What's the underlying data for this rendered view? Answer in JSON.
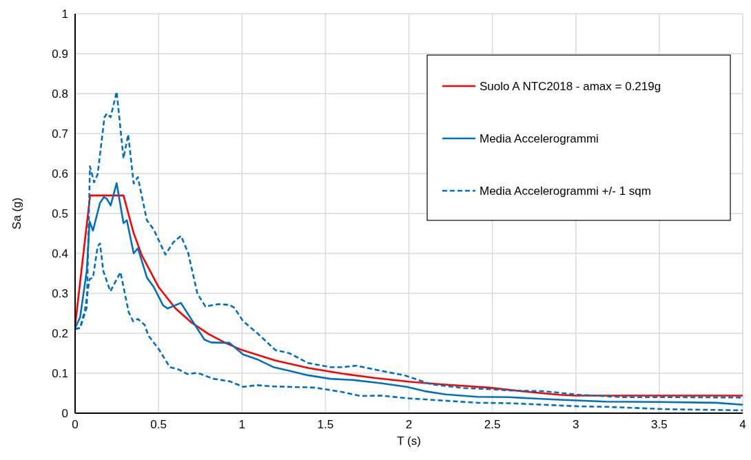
{
  "chart_data": {
    "type": "line",
    "xlabel": "T (s)",
    "ylabel": "Sa (g)",
    "xlim": [
      0,
      4
    ],
    "ylim": [
      0,
      1
    ],
    "xticks": [
      0,
      0.5,
      1,
      1.5,
      2,
      2.5,
      3,
      3.5,
      4
    ],
    "yticks": [
      0,
      0.1,
      0.2,
      0.3,
      0.4,
      0.5,
      0.6,
      0.7,
      0.8,
      0.9,
      1
    ],
    "grid": true,
    "legend": "top right",
    "marker": "none",
    "series": [
      {
        "name": "Suolo A NTC2018 - amax = 0.219g",
        "color": "#ff0000",
        "line_style": "solid",
        "x": [
          0,
          0.09,
          0.29,
          0.35,
          0.4,
          0.5,
          0.6,
          0.7,
          0.8,
          0.9,
          1,
          1.2,
          1.4,
          1.6,
          1.8,
          2,
          2.2,
          2.48,
          2.7,
          2.9,
          3,
          4
        ],
        "values": [
          0.219,
          0.545,
          0.545,
          0.452,
          0.395,
          0.316,
          0.263,
          0.226,
          0.198,
          0.176,
          0.158,
          0.132,
          0.113,
          0.099,
          0.088,
          0.079,
          0.072,
          0.064,
          0.054,
          0.046,
          0.044,
          0.044
        ]
      },
      {
        "name": "Media Accelerogrammi",
        "color": "#0070c0",
        "line_style": "solid",
        "x": [
          0,
          0.03,
          0.07,
          0.087,
          0.107,
          0.149,
          0.172,
          0.19,
          0.213,
          0.249,
          0.29,
          0.31,
          0.351,
          0.376,
          0.431,
          0.471,
          0.527,
          0.554,
          0.634,
          0.678,
          0.775,
          0.816,
          0.925,
          1.007,
          1.09,
          1.19,
          1.284,
          1.394,
          1.53,
          1.668,
          1.833,
          1.986,
          2.096,
          2.22,
          2.41,
          2.6,
          2.88,
          3.18,
          3.5,
          3.84,
          4
        ],
        "values": [
          0.213,
          0.24,
          0.357,
          0.48,
          0.457,
          0.526,
          0.541,
          0.537,
          0.52,
          0.576,
          0.476,
          0.483,
          0.4,
          0.413,
          0.339,
          0.316,
          0.27,
          0.262,
          0.276,
          0.247,
          0.184,
          0.177,
          0.176,
          0.147,
          0.135,
          0.115,
          0.106,
          0.095,
          0.086,
          0.083,
          0.075,
          0.066,
          0.055,
          0.047,
          0.041,
          0.04,
          0.034,
          0.029,
          0.028,
          0.026,
          0.021
        ]
      },
      {
        "name": "Media Accelerogrammi +/- 1 sqm",
        "color": "#0070c0",
        "line_style": "dashed",
        "x": [
          0,
          0.03,
          0.07,
          0.089,
          0.114,
          0.135,
          0.176,
          0.19,
          0.213,
          0.249,
          0.29,
          0.318,
          0.351,
          0.376,
          0.43,
          0.471,
          0.541,
          0.589,
          0.634,
          0.677,
          0.733,
          0.781,
          0.857,
          0.925,
          0.954,
          1.007,
          1.09,
          1.2,
          1.284,
          1.394,
          1.53,
          1.6,
          1.683,
          1.833,
          1.972,
          2.137,
          2.33,
          2.49,
          2.6,
          2.81,
          3.02,
          3.29,
          3.64,
          4
        ],
        "values": [
          0.211,
          0.213,
          0.265,
          0.618,
          0.578,
          0.598,
          0.741,
          0.75,
          0.741,
          0.805,
          0.638,
          0.698,
          0.575,
          0.591,
          0.483,
          0.46,
          0.397,
          0.428,
          0.444,
          0.402,
          0.299,
          0.267,
          0.273,
          0.271,
          0.264,
          0.23,
          0.201,
          0.158,
          0.15,
          0.126,
          0.115,
          0.115,
          0.119,
          0.106,
          0.095,
          0.072,
          0.063,
          0.06,
          0.057,
          0.055,
          0.046,
          0.04,
          0.04,
          0.039
        ]
      },
      {
        "color": "#0070c0",
        "line_style": "dashed",
        "x": [
          0,
          0.03,
          0.059,
          0.087,
          0.107,
          0.135,
          0.149,
          0.169,
          0.211,
          0.272,
          0.321,
          0.348,
          0.376,
          0.417,
          0.438,
          0.5,
          0.568,
          0.623,
          0.672,
          0.733,
          0.83,
          0.925,
          0.954,
          1.007,
          1.09,
          1.19,
          1.284,
          1.435,
          1.6,
          1.71,
          1.833,
          2.0,
          2.19,
          2.41,
          2.6,
          3.02,
          3.18,
          3.54,
          4
        ],
        "values": [
          0.211,
          0.213,
          0.259,
          0.336,
          0.339,
          0.417,
          0.425,
          0.356,
          0.305,
          0.353,
          0.253,
          0.23,
          0.236,
          0.221,
          0.195,
          0.161,
          0.115,
          0.109,
          0.098,
          0.101,
          0.086,
          0.08,
          0.075,
          0.066,
          0.07,
          0.067,
          0.066,
          0.064,
          0.053,
          0.043,
          0.044,
          0.037,
          0.032,
          0.026,
          0.025,
          0.017,
          0.016,
          0.01,
          0.007
        ]
      }
    ]
  }
}
